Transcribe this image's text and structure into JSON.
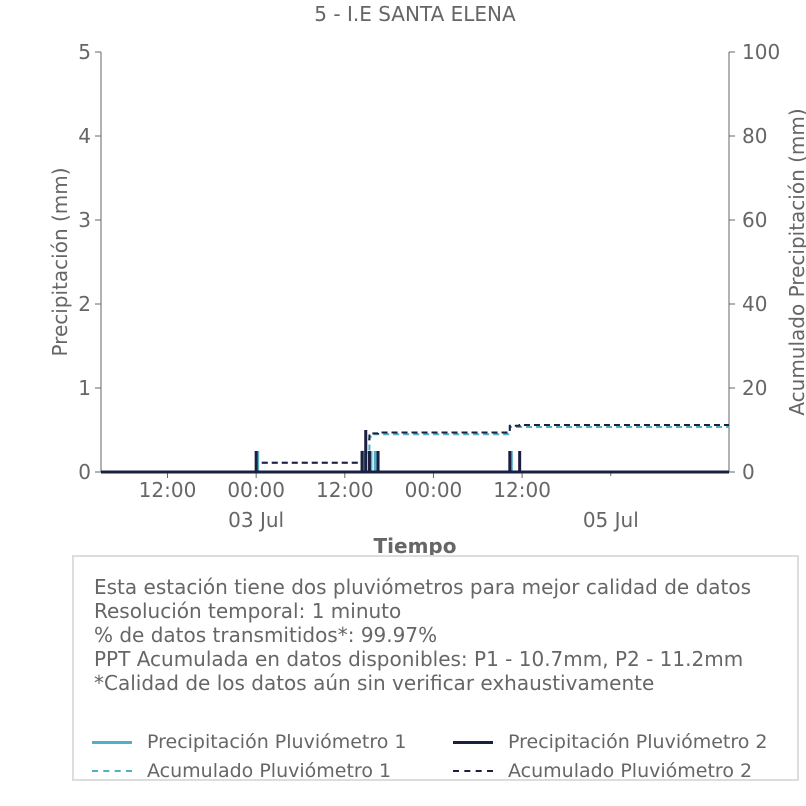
{
  "chart_data": {
    "type": "line",
    "title": "5 - I.E SANTA ELENA",
    "xlabel": "Tiempo",
    "ylabel_left": "Precipitación (mm)",
    "ylabel_right": "Acumulado Precipitación (mm)",
    "x_range": [
      "2024-07-02T03:00",
      "2024-07-05T16:00"
    ],
    "ylim_left": [
      0,
      5
    ],
    "ylim_right": [
      0,
      100
    ],
    "yticks_left": [
      "0",
      "1",
      "2",
      "3",
      "4",
      "5"
    ],
    "yticks_right": [
      "0",
      "20",
      "40",
      "60",
      "80",
      "100"
    ],
    "xticks": [
      {
        "time": "2024-07-02T12:00",
        "label": "12:00",
        "sublabel": ""
      },
      {
        "time": "2024-07-03T00:00",
        "label": "00:00",
        "sublabel": "03 Jul"
      },
      {
        "time": "2024-07-03T12:00",
        "label": "12:00",
        "sublabel": ""
      },
      {
        "time": "2024-07-04T00:00",
        "label": "00:00",
        "sublabel": ""
      },
      {
        "time": "2024-07-04T12:00",
        "label": "12:00",
        "sublabel": ""
      }
    ],
    "xticks_minor": [
      {
        "time": "2024-07-05T00:00",
        "label": "",
        "sublabel": "05 Jul"
      }
    ],
    "grid": false,
    "series": [
      {
        "name": "Precipitación Pluviómetro 1",
        "axis": "left",
        "style": "solid",
        "color": "#4fb0c6",
        "points": [
          {
            "t": "2024-07-03T00:00",
            "v": 0.25
          },
          {
            "t": "2024-07-03T14:20",
            "v": 0.25
          },
          {
            "t": "2024-07-03T15:20",
            "v": 0.25
          },
          {
            "t": "2024-07-03T15:55",
            "v": 0.25
          },
          {
            "t": "2024-07-04T10:20",
            "v": 0.25
          }
        ]
      },
      {
        "name": "Precipitación Pluviómetro 2",
        "axis": "left",
        "style": "solid",
        "color": "#1b2040",
        "points": [
          {
            "t": "2024-07-03T00:00",
            "v": 0.25
          },
          {
            "t": "2024-07-03T14:20",
            "v": 0.25
          },
          {
            "t": "2024-07-03T14:50",
            "v": 0.5
          },
          {
            "t": "2024-07-03T15:20",
            "v": 0.25
          },
          {
            "t": "2024-07-03T16:30",
            "v": 0.25
          },
          {
            "t": "2024-07-04T10:20",
            "v": 0.25
          },
          {
            "t": "2024-07-04T11:40",
            "v": 0.25
          }
        ]
      },
      {
        "name": "Acumulado Pluviómetro 1",
        "axis": "right",
        "style": "dashed",
        "color": "#4fb0c6",
        "steps": [
          {
            "t": "2024-07-02T03:00",
            "v": 0
          },
          {
            "t": "2024-07-03T00:00",
            "v": 2.2
          },
          {
            "t": "2024-07-03T14:20",
            "v": 4.6
          },
          {
            "t": "2024-07-03T15:20",
            "v": 8.4
          },
          {
            "t": "2024-07-03T15:55",
            "v": 9.0
          },
          {
            "t": "2024-07-04T10:20",
            "v": 10.7
          }
        ],
        "end": "2024-07-05T16:00"
      },
      {
        "name": "Acumulado Pluviómetro 2",
        "axis": "right",
        "style": "dashed",
        "color": "#1b2040",
        "steps": [
          {
            "t": "2024-07-02T03:00",
            "v": 0
          },
          {
            "t": "2024-07-03T00:00",
            "v": 2.2
          },
          {
            "t": "2024-07-03T14:20",
            "v": 4.8
          },
          {
            "t": "2024-07-03T14:50",
            "v": 7.8
          },
          {
            "t": "2024-07-03T15:20",
            "v": 9.2
          },
          {
            "t": "2024-07-03T16:30",
            "v": 9.4
          },
          {
            "t": "2024-07-04T10:20",
            "v": 11.0
          },
          {
            "t": "2024-07-04T11:40",
            "v": 11.2
          }
        ],
        "end": "2024-07-05T16:00"
      }
    ]
  },
  "info": {
    "lines": [
      "Esta estación tiene dos pluviómetros para mejor calidad de datos",
      "Resolución temporal: 1 minuto",
      "% de datos transmitidos*: 99.97%",
      "PPT Acumulada en datos disponibles: P1 - 10.7mm, P2 - 11.2mm",
      "*Calidad de los datos aún sin verificar exhaustivamente"
    ]
  },
  "legend": {
    "items": [
      {
        "label": "Precipitación Pluviómetro 1",
        "color": "#4fb0c6",
        "style": "solid"
      },
      {
        "label": "Precipitación Pluviómetro 2",
        "color": "#1b2040",
        "style": "solid"
      },
      {
        "label": "Acumulado Pluviómetro 1",
        "color": "#4fb0c6",
        "style": "dashed"
      },
      {
        "label": "Acumulado Pluviómetro 2",
        "color": "#1b2040",
        "style": "dashed"
      }
    ]
  }
}
